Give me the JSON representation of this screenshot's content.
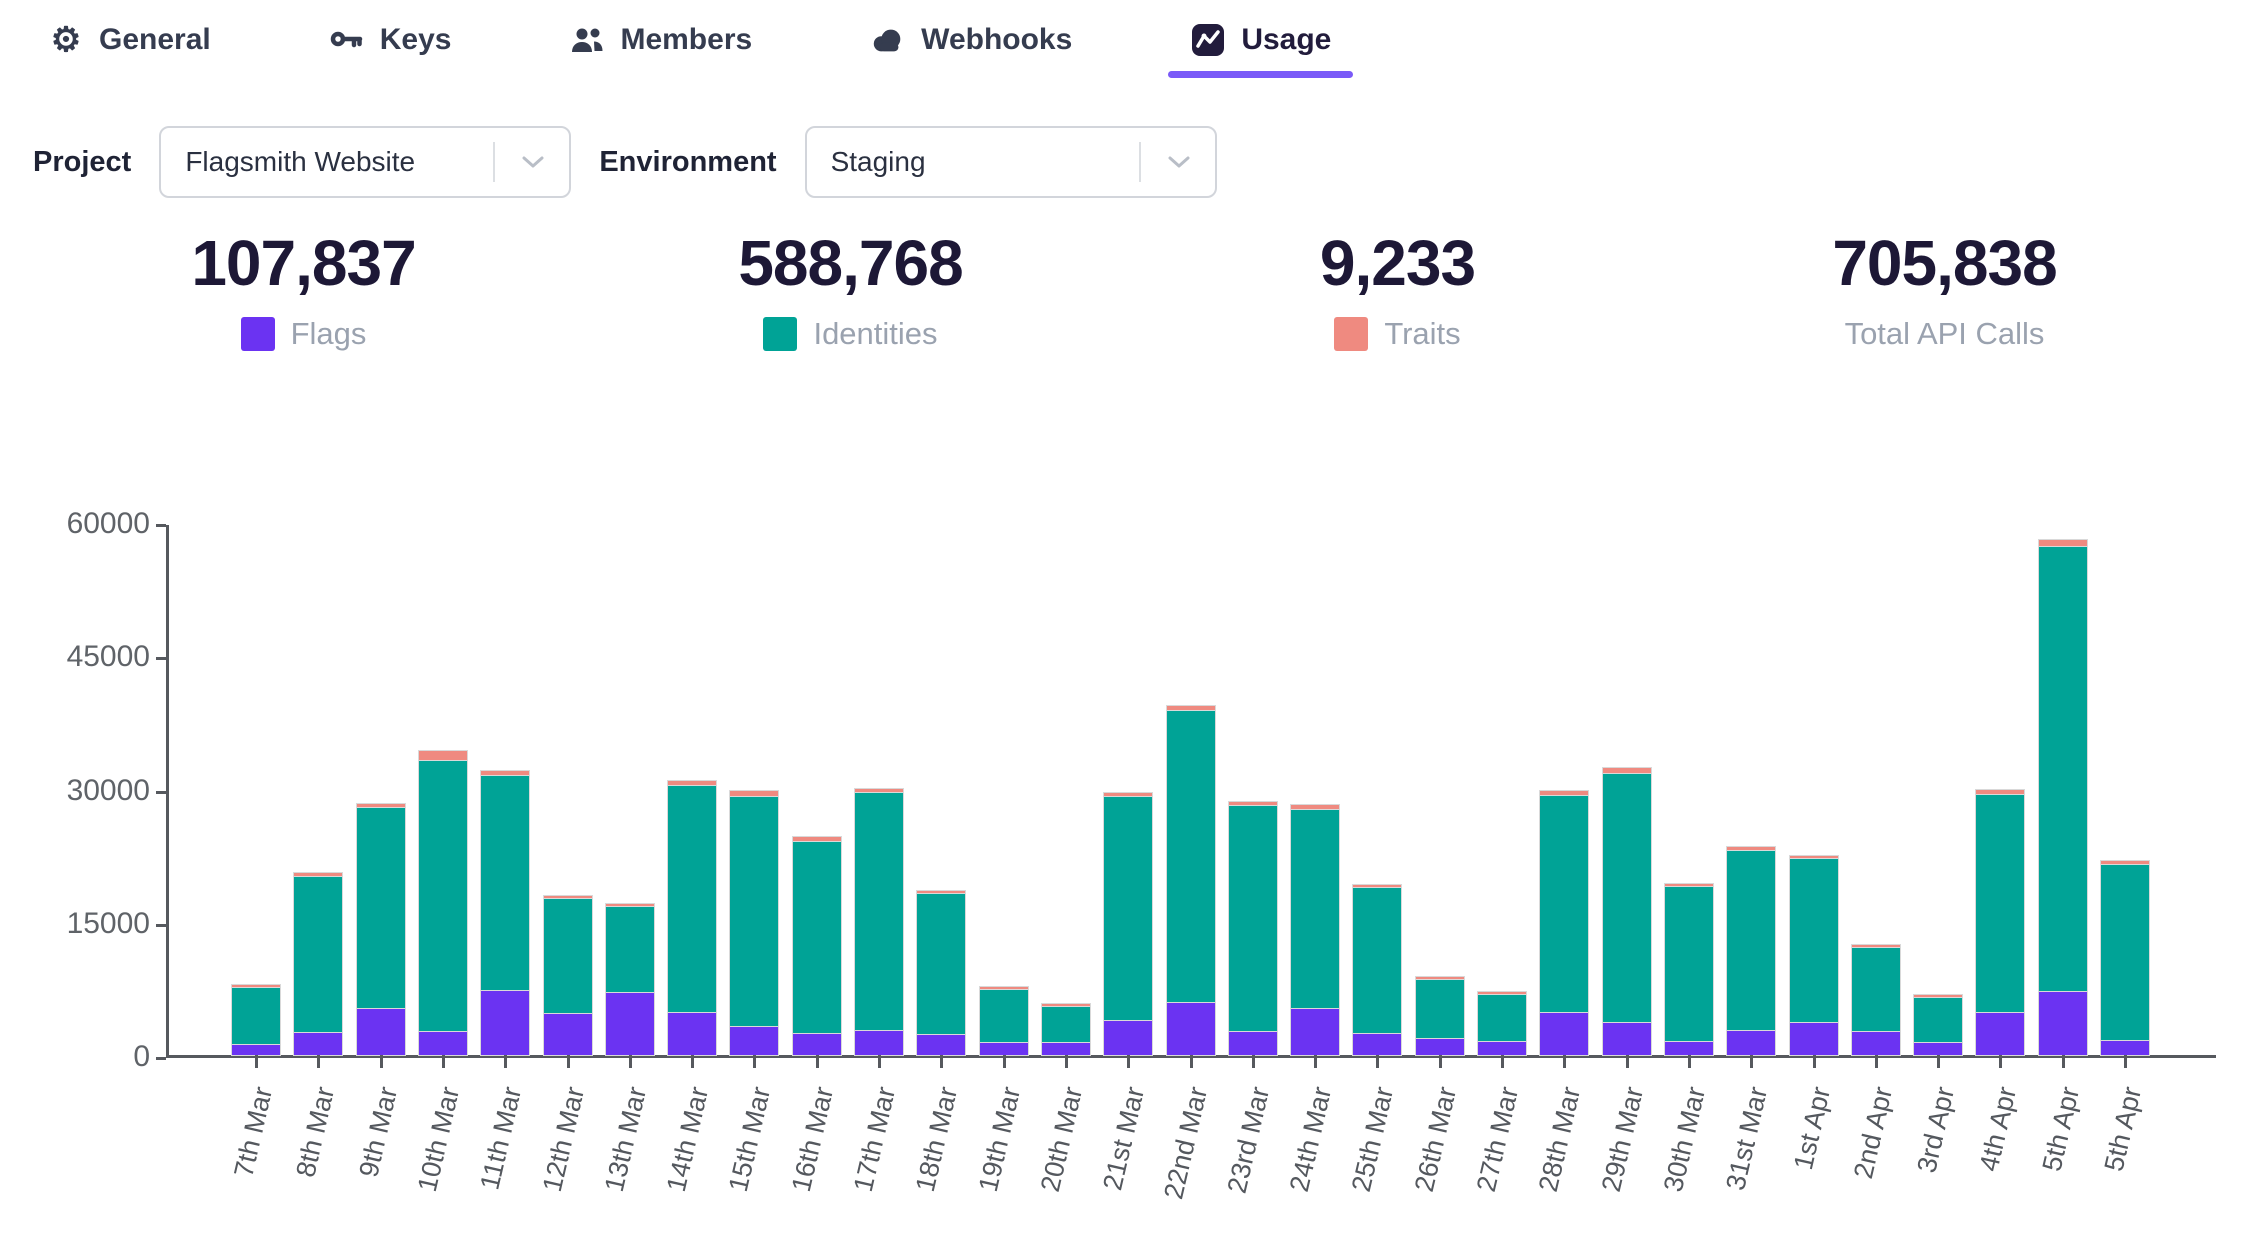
{
  "tabs": [
    {
      "label": "General",
      "icon": "gear-icon",
      "active": false
    },
    {
      "label": "Keys",
      "icon": "key-icon",
      "active": false
    },
    {
      "label": "Members",
      "icon": "members-icon",
      "active": false
    },
    {
      "label": "Webhooks",
      "icon": "cloud-icon",
      "active": false
    },
    {
      "label": "Usage",
      "icon": "usage-chart-icon",
      "active": true
    }
  ],
  "filters": {
    "project_label": "Project",
    "project_value": "Flagsmith Website",
    "environment_label": "Environment",
    "environment_value": "Staging"
  },
  "stats": [
    {
      "value": "107,837",
      "label": "Flags",
      "color": "#6b33f2"
    },
    {
      "value": "588,768",
      "label": "Identities",
      "color": "#00a396"
    },
    {
      "value": "9,233",
      "label": "Traits",
      "color": "#ef8a80"
    },
    {
      "value": "705,838",
      "label": "Total API Calls",
      "color": null
    }
  ],
  "chart_data": {
    "type": "bar",
    "stacked": true,
    "title": "",
    "xlabel": "",
    "ylabel": "",
    "ylim": [
      0,
      60000
    ],
    "yticks": [
      0,
      15000,
      30000,
      45000,
      60000
    ],
    "grid": false,
    "legend_position": "none",
    "categories": [
      "7th Mar",
      "8th Mar",
      "9th Mar",
      "10th Mar",
      "11th Mar",
      "12th Mar",
      "13th Mar",
      "14th Mar",
      "15th Mar",
      "16th Mar",
      "17th Mar",
      "18th Mar",
      "19th Mar",
      "20th Mar",
      "21st Mar",
      "22nd Mar",
      "23rd Mar",
      "24th Mar",
      "25th Mar",
      "26th Mar",
      "27th Mar",
      "28th Mar",
      "29th Mar",
      "30th Mar",
      "31st Mar",
      "1st Apr",
      "2nd Apr",
      "3rd Apr",
      "4th Apr",
      "5th Apr",
      "5th Apr"
    ],
    "series": [
      {
        "name": "Flags",
        "color": "#6b33f2",
        "values": [
          1250,
          2600,
          5300,
          2700,
          7300,
          4750,
          7100,
          4800,
          3270,
          2480,
          2820,
          2370,
          1470,
          1470,
          3950,
          5980,
          2700,
          5300,
          2500,
          1900,
          1600,
          4880,
          3690,
          1620,
          2820,
          3690,
          2670,
          1470,
          4850,
          7250,
          1700
        ]
      },
      {
        "name": "Identities",
        "color": "#00a396",
        "values": [
          6450,
          17550,
          22600,
          30500,
          24250,
          12900,
          9700,
          25550,
          25930,
          21570,
          26780,
          15880,
          5980,
          4000,
          25200,
          32820,
          25400,
          22450,
          16400,
          6700,
          5220,
          24370,
          28110,
          17380,
          20230,
          18460,
          9510,
          5050,
          24550,
          50050,
          19850
        ]
      },
      {
        "name": "Traits",
        "color": "#ef8a80",
        "values": [
          100,
          350,
          400,
          1000,
          450,
          150,
          100,
          450,
          500,
          450,
          400,
          150,
          100,
          80,
          350,
          500,
          400,
          450,
          200,
          100,
          80,
          450,
          500,
          200,
          350,
          250,
          120,
          80,
          400,
          700,
          250
        ]
      }
    ]
  }
}
